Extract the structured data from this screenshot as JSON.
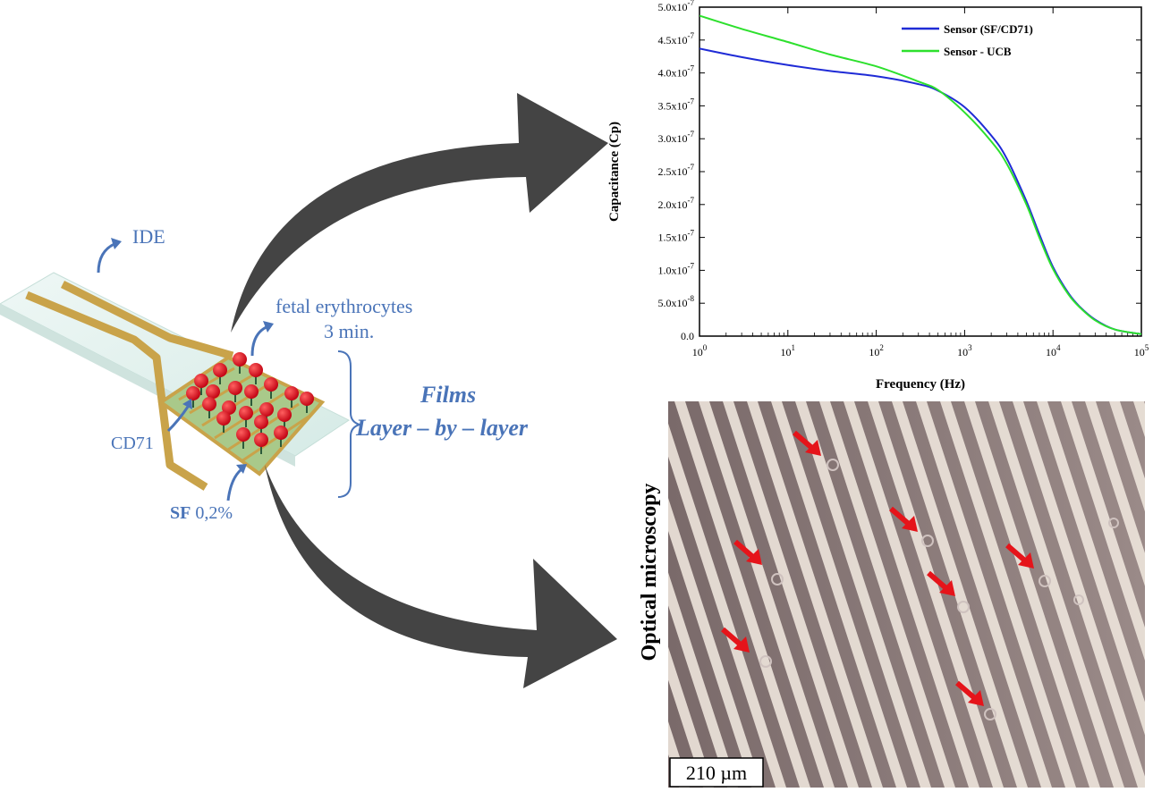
{
  "diagram": {
    "labels": {
      "ide": "IDE",
      "fetal_erythrocytes": "fetal erythrocytes",
      "time": "3 min.",
      "cd71": "CD71",
      "sf_bold": "SF",
      "sf_value": " 0,2%",
      "films": "Films",
      "lbl": "Layer – by – layer"
    },
    "colors": {
      "label_blue": "#4a74b8",
      "arrow_gray": "#444444",
      "electrode_gold": "#c9a34a",
      "cell_red": "#e0141a"
    }
  },
  "chart_data": {
    "type": "line",
    "xlabel": "Frequency (Hz)",
    "ylabel": "Capacitance (Cp)",
    "x_scale": "log",
    "xlim": [
      1,
      100000
    ],
    "ylim": [
      0,
      5e-07
    ],
    "x_ticks": [
      {
        "base": "10",
        "exp": "0"
      },
      {
        "base": "10",
        "exp": "1"
      },
      {
        "base": "10",
        "exp": "2"
      },
      {
        "base": "10",
        "exp": "3"
      },
      {
        "base": "10",
        "exp": "4"
      },
      {
        "base": "10",
        "exp": "5"
      }
    ],
    "y_ticks": [
      {
        "mant": "0.0",
        "exp": ""
      },
      {
        "mant": "5.0x10",
        "exp": "-8"
      },
      {
        "mant": "1.0x10",
        "exp": "-7"
      },
      {
        "mant": "1.5x10",
        "exp": "-7"
      },
      {
        "mant": "2.0x10",
        "exp": "-7"
      },
      {
        "mant": "2.5x10",
        "exp": "-7"
      },
      {
        "mant": "3.0x10",
        "exp": "-7"
      },
      {
        "mant": "3.5x10",
        "exp": "-7"
      },
      {
        "mant": "4.0x10",
        "exp": "-7"
      },
      {
        "mant": "4.5x10",
        "exp": "-7"
      },
      {
        "mant": "5.0x10",
        "exp": "-7"
      }
    ],
    "legend_position": "top-right",
    "series": [
      {
        "name": "Sensor (SF/CD71)",
        "color": "#1f2bd6",
        "x": [
          1,
          3,
          10,
          30,
          100,
          300,
          500,
          1000,
          2000,
          3000,
          5000,
          7000,
          10000,
          15000,
          20000,
          30000,
          50000,
          100000
        ],
        "y": [
          4.37e-07,
          4.24e-07,
          4.12e-07,
          4.03e-07,
          3.95e-07,
          3.83e-07,
          3.73e-07,
          3.48e-07,
          3.05e-07,
          2.7e-07,
          2.05e-07,
          1.55e-07,
          1.05e-07,
          6.5e-08,
          4.5e-08,
          2.5e-08,
          1e-08,
          3e-09
        ]
      },
      {
        "name": "Sensor - UCB",
        "color": "#2de02d",
        "x": [
          1,
          3,
          10,
          30,
          100,
          300,
          500,
          1000,
          2000,
          3000,
          5000,
          7000,
          10000,
          15000,
          20000,
          30000,
          50000,
          100000
        ],
        "y": [
          4.87e-07,
          4.67e-07,
          4.47e-07,
          4.28e-07,
          4.1e-07,
          3.87e-07,
          3.74e-07,
          3.4e-07,
          2.96e-07,
          2.62e-07,
          2e-07,
          1.5e-07,
          1.02e-07,
          6.3e-08,
          4.4e-08,
          2.4e-08,
          1e-08,
          3e-09
        ]
      }
    ]
  },
  "microscopy": {
    "side_label": "Optical microscopy",
    "scale_bar_label": "210 µm",
    "arrow_color": "#e5141a"
  }
}
